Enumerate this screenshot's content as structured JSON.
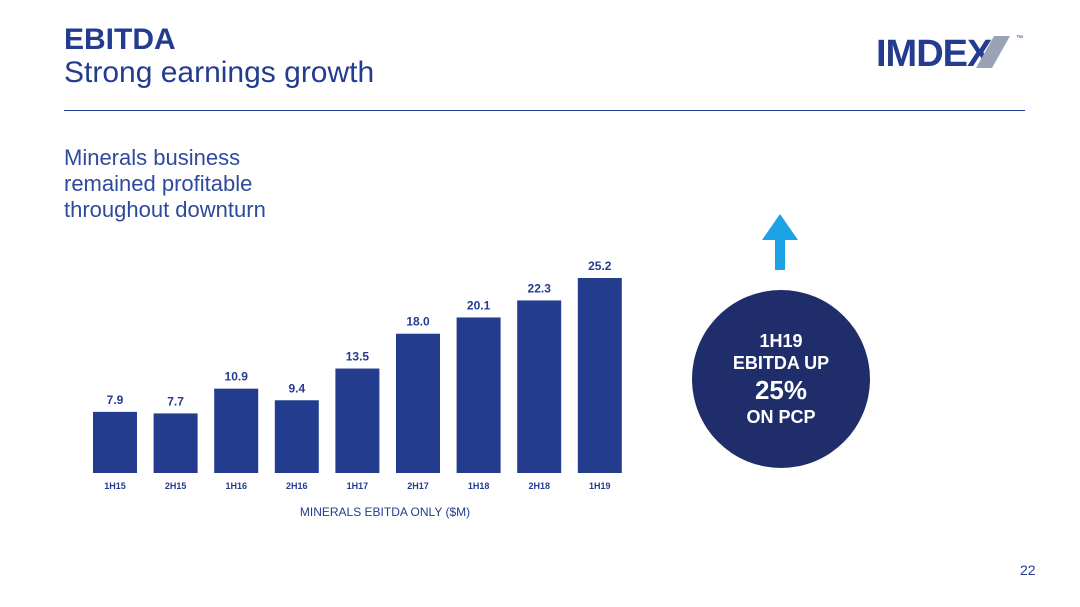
{
  "header": {
    "title": "EBITDA",
    "subtitle": "Strong earnings growth",
    "logo_text": "IMDEX",
    "logo_tm": "™"
  },
  "side_note": "Minerals business remained profitable throughout downturn",
  "callout": {
    "line1": "1H19",
    "line2": "EBITDA UP",
    "line3": "25%",
    "line4": "ON PCP"
  },
  "page_number": "22",
  "colors": {
    "bar": "#233c8e",
    "title": "#243c8f",
    "bubble": "#1f2d6b",
    "arrow": "#1ca3e5"
  },
  "chart_data": {
    "type": "bar",
    "categories": [
      "1H15",
      "2H15",
      "1H16",
      "2H16",
      "1H17",
      "2H17",
      "1H18",
      "2H18",
      "1H19"
    ],
    "values": [
      7.9,
      7.7,
      10.9,
      9.4,
      13.5,
      18.0,
      20.1,
      22.3,
      25.2
    ],
    "value_labels": [
      "7.9",
      "7.7",
      "10.9",
      "9.4",
      "13.5",
      "18.0",
      "20.1",
      "22.3",
      "25.2"
    ],
    "xlabel": "MINERALS EBITDA ONLY ($M)",
    "ylabel": "",
    "ylim": [
      0,
      25.2
    ],
    "grid": false,
    "legend": "none"
  }
}
